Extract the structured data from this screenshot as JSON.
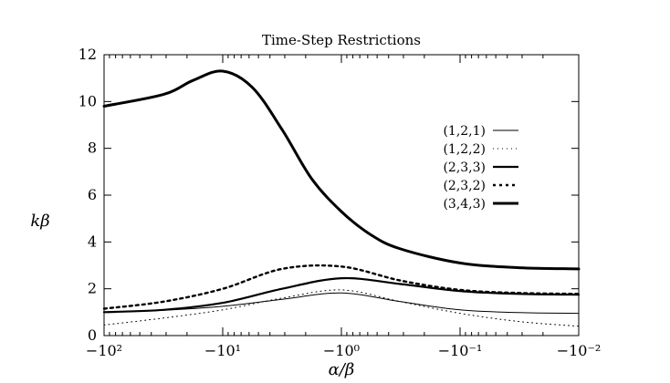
{
  "chart_data": {
    "type": "line",
    "title": "Time-Step Restrictions",
    "xlabel": "α/β",
    "ylabel": "kβ",
    "x_scale": "log (negative values)",
    "xlim": [
      -100,
      -0.01
    ],
    "ylim": [
      0,
      12
    ],
    "x_ticks": [
      {
        "value": -100,
        "label": "−10²"
      },
      {
        "value": -10,
        "label": "−10¹"
      },
      {
        "value": -1,
        "label": "−10⁰"
      },
      {
        "value": -0.1,
        "label": "−10⁻¹"
      },
      {
        "value": -0.01,
        "label": "−10⁻²"
      }
    ],
    "y_ticks": [
      0,
      2,
      4,
      6,
      8,
      10,
      12
    ],
    "grid": false,
    "legend_position": "right",
    "series": [
      {
        "name": "(1,2,1)",
        "style": "thin-solid",
        "x": [
          -100,
          -31.6,
          -10,
          -3.16,
          -1,
          -0.316,
          -0.1,
          -0.0316,
          -0.01
        ],
        "y": [
          1.0,
          1.08,
          1.25,
          1.55,
          1.82,
          1.45,
          1.1,
          0.98,
          0.95
        ]
      },
      {
        "name": "(1,2,2)",
        "style": "dotted",
        "x": [
          -100,
          -31.6,
          -10,
          -3.16,
          -1,
          -0.316,
          -0.1,
          -0.0316,
          -0.01
        ],
        "y": [
          0.45,
          0.75,
          1.1,
          1.6,
          1.95,
          1.45,
          0.95,
          0.6,
          0.4
        ]
      },
      {
        "name": "(2,3,3)",
        "style": "medium-solid",
        "x": [
          -100,
          -31.6,
          -10,
          -3.16,
          -1,
          -0.316,
          -0.1,
          -0.0316,
          -0.01
        ],
        "y": [
          1.0,
          1.1,
          1.4,
          2.0,
          2.45,
          2.2,
          1.9,
          1.78,
          1.75
        ]
      },
      {
        "name": "(2,3,2)",
        "style": "dashed",
        "x": [
          -100,
          -31.6,
          -10,
          -3.16,
          -1,
          -0.316,
          -0.1,
          -0.0316,
          -0.01
        ],
        "y": [
          1.15,
          1.45,
          2.0,
          2.85,
          2.95,
          2.35,
          1.95,
          1.82,
          1.78
        ]
      },
      {
        "name": "(3,4,3)",
        "style": "thick-solid",
        "x": [
          -100,
          -31.6,
          -17.8,
          -10,
          -5.62,
          -3.16,
          -1.78,
          -1,
          -0.562,
          -0.316,
          -0.1,
          -0.0316,
          -0.01
        ],
        "y": [
          9.8,
          10.3,
          10.9,
          11.3,
          10.6,
          8.8,
          6.7,
          5.3,
          4.3,
          3.7,
          3.1,
          2.9,
          2.85
        ]
      }
    ]
  }
}
